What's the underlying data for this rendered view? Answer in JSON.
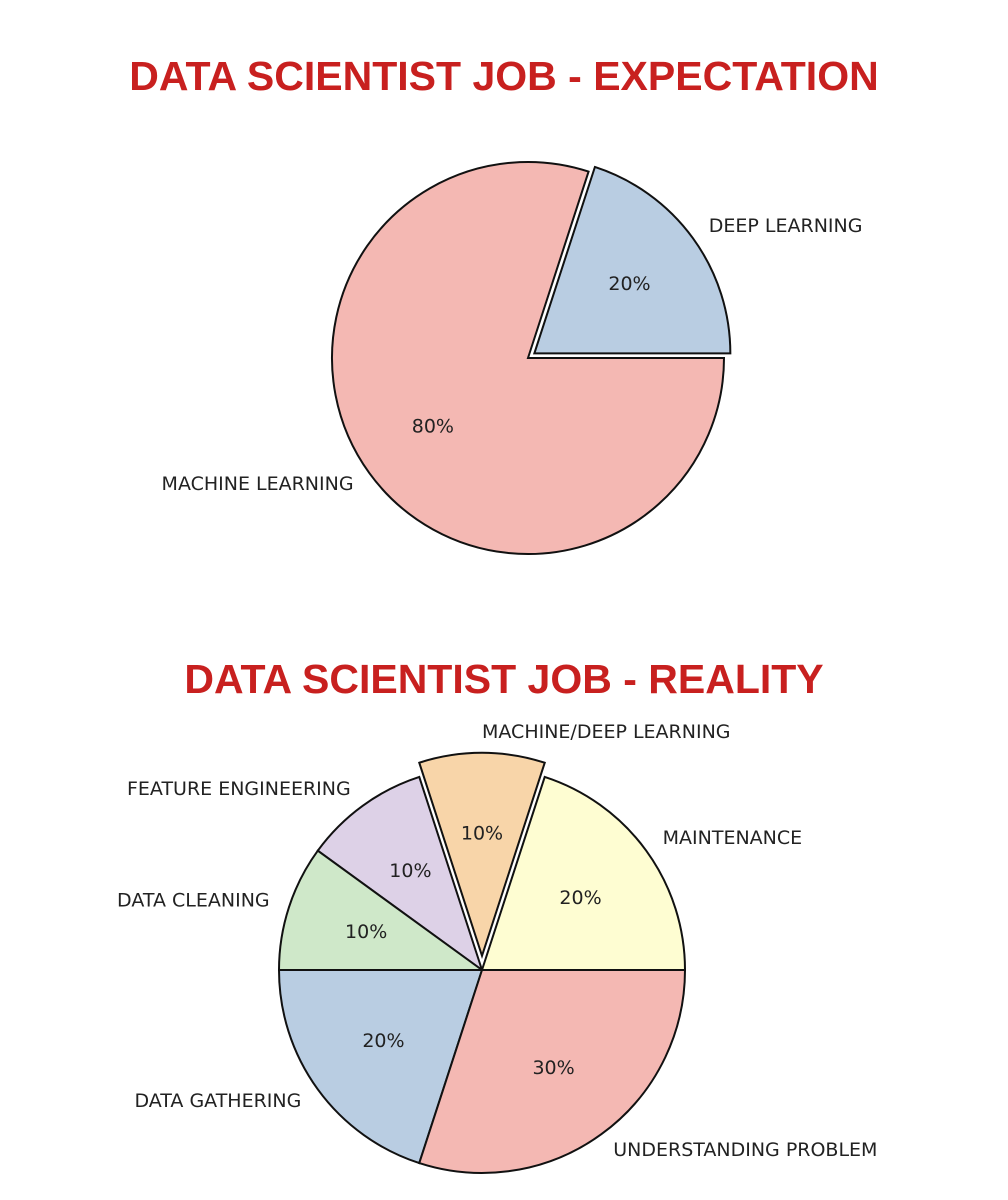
{
  "chart_data": [
    {
      "type": "pie",
      "title": "DATA SCIENTIST JOB - EXPECTATION",
      "categories": [
        "DEEP LEARNING",
        "MACHINE LEARNING"
      ],
      "values": [
        20,
        80
      ],
      "value_labels": [
        "20%",
        "80%"
      ],
      "colors": [
        "#b9cde2",
        "#f4b8b3"
      ],
      "explode": [
        true,
        false
      ]
    },
    {
      "type": "pie",
      "title": "DATA SCIENTIST JOB - REALITY",
      "categories": [
        "MAINTENANCE",
        "MACHINE/DEEP LEARNING",
        "FEATURE ENGINEERING",
        "DATA CLEANING",
        "DATA GATHERING",
        "UNDERSTANDING PROBLEM"
      ],
      "values": [
        20,
        10,
        10,
        10,
        20,
        30
      ],
      "value_labels": [
        "20%",
        "10%",
        "10%",
        "10%",
        "20%",
        "30%"
      ],
      "colors": [
        "#fefdd2",
        "#f8d5a9",
        "#ddd1e7",
        "#cfe8c9",
        "#b9cde2",
        "#f4b8b3"
      ],
      "explode": [
        false,
        true,
        false,
        false,
        false,
        false
      ]
    }
  ]
}
